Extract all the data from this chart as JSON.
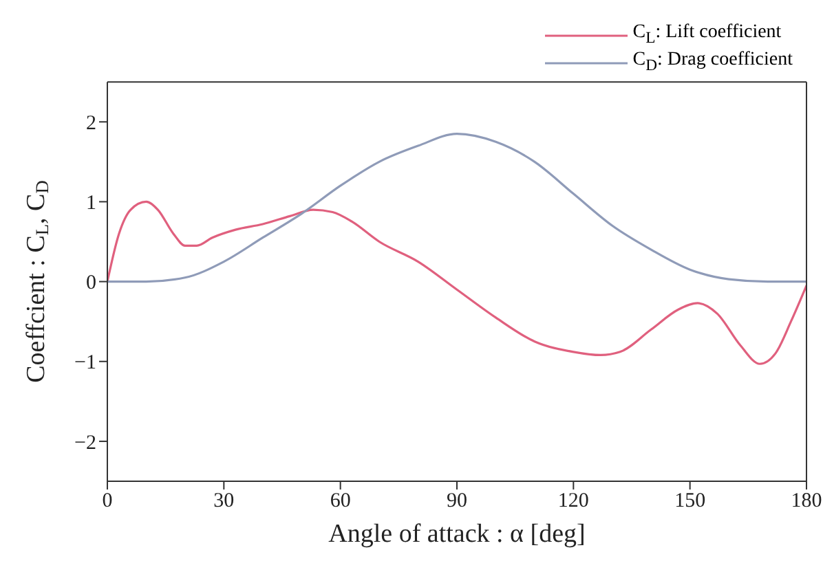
{
  "chart_data": {
    "type": "line",
    "xlabel": "Angle of attack :  α  [deg]",
    "ylabel": "Coeffcient : C$_{L}$, C$_{D}$",
    "xlim": [
      0,
      180
    ],
    "xticks": [
      0,
      30,
      60,
      90,
      120,
      150,
      180
    ],
    "ylim": [
      -2.5,
      2.5
    ],
    "yticks": [
      -2,
      -1,
      0,
      1,
      2
    ],
    "legend": "top right",
    "marker": "none",
    "line_style": "solid",
    "series": [
      {
        "name": "C$_{L}$: Lift coefficient",
        "color": "#e0607e",
        "x": [
          0,
          3,
          6,
          10,
          13,
          17,
          20,
          23,
          27,
          33,
          40,
          47,
          53,
          58,
          63,
          70,
          80,
          90,
          100,
          110,
          120,
          127,
          132,
          140,
          147,
          152,
          157,
          163,
          168,
          172,
          176,
          180
        ],
        "values": [
          0,
          0.6,
          0.9,
          1.0,
          0.9,
          0.6,
          0.45,
          0.45,
          0.55,
          0.65,
          0.72,
          0.82,
          0.9,
          0.87,
          0.75,
          0.5,
          0.25,
          -0.1,
          -0.45,
          -0.75,
          -0.88,
          -0.92,
          -0.88,
          -0.6,
          -0.35,
          -0.27,
          -0.4,
          -0.8,
          -1.03,
          -0.9,
          -0.5,
          -0.05
        ]
      },
      {
        "name": "C$_{D}$: Drag coefficient",
        "color": "#8f9bb8",
        "x": [
          0,
          10,
          20,
          30,
          40,
          50,
          60,
          70,
          80,
          90,
          100,
          110,
          120,
          130,
          140,
          150,
          160,
          170,
          180
        ],
        "values": [
          0,
          0,
          0.05,
          0.25,
          0.55,
          0.85,
          1.2,
          1.5,
          1.7,
          1.85,
          1.75,
          1.5,
          1.1,
          0.7,
          0.4,
          0.15,
          0.03,
          0,
          0
        ]
      }
    ]
  }
}
